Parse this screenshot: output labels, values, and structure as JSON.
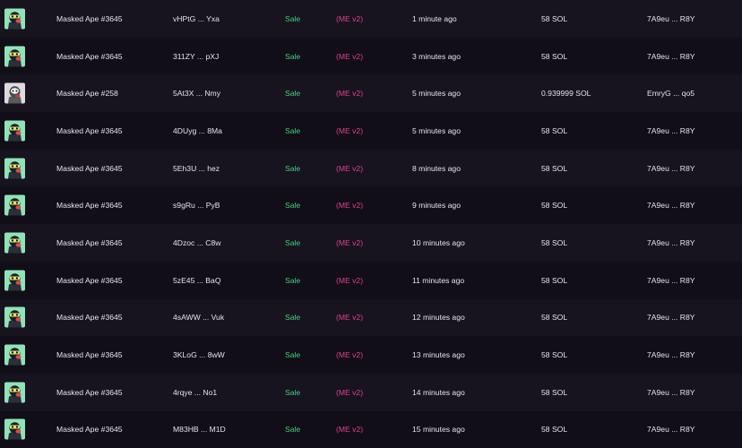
{
  "colors": {
    "sale": "#3fd07a",
    "marketplace": "#e0408e",
    "ape_bg": "#8fe3b8",
    "ape_white_bg": "#dcdcdc"
  },
  "rows": [
    {
      "avatar": "masked-ape-green",
      "name": "Masked Ape #3645",
      "signature": "vHPtG ... Yxa",
      "type": "Sale",
      "marketplace": "(ME v2)",
      "time": "1 minute ago",
      "price": "58 SOL",
      "buyer": "7A9eu ... R8Y"
    },
    {
      "avatar": "masked-ape-green",
      "name": "Masked Ape #3645",
      "signature": "311ZY ... pXJ",
      "type": "Sale",
      "marketplace": "(ME v2)",
      "time": "3 minutes ago",
      "price": "58 SOL",
      "buyer": "7A9eu ... R8Y"
    },
    {
      "avatar": "masked-ape-white",
      "name": "Masked Ape #258",
      "signature": "5At3X ... Nmy",
      "type": "Sale",
      "marketplace": "(ME v2)",
      "time": "5 minutes ago",
      "price": "0.939999 SOL",
      "buyer": "EmryG ... qo5"
    },
    {
      "avatar": "masked-ape-green",
      "name": "Masked Ape #3645",
      "signature": "4DUyg ... 8Ma",
      "type": "Sale",
      "marketplace": "(ME v2)",
      "time": "5 minutes ago",
      "price": "58 SOL",
      "buyer": "7A9eu ... R8Y"
    },
    {
      "avatar": "masked-ape-green",
      "name": "Masked Ape #3645",
      "signature": "5Eh3U ... hez",
      "type": "Sale",
      "marketplace": "(ME v2)",
      "time": "8 minutes ago",
      "price": "58 SOL",
      "buyer": "7A9eu ... R8Y"
    },
    {
      "avatar": "masked-ape-green",
      "name": "Masked Ape #3645",
      "signature": "s9gRu ... PyB",
      "type": "Sale",
      "marketplace": "(ME v2)",
      "time": "9 minutes ago",
      "price": "58 SOL",
      "buyer": "7A9eu ... R8Y"
    },
    {
      "avatar": "masked-ape-green",
      "name": "Masked Ape #3645",
      "signature": "4Dzoc ... C8w",
      "type": "Sale",
      "marketplace": "(ME v2)",
      "time": "10 minutes ago",
      "price": "58 SOL",
      "buyer": "7A9eu ... R8Y"
    },
    {
      "avatar": "masked-ape-green",
      "name": "Masked Ape #3645",
      "signature": "5zE45 ... BaQ",
      "type": "Sale",
      "marketplace": "(ME v2)",
      "time": "11 minutes ago",
      "price": "58 SOL",
      "buyer": "7A9eu ... R8Y"
    },
    {
      "avatar": "masked-ape-green",
      "name": "Masked Ape #3645",
      "signature": "4sAWW ... Vuk",
      "type": "Sale",
      "marketplace": "(ME v2)",
      "time": "12 minutes ago",
      "price": "58 SOL",
      "buyer": "7A9eu ... R8Y"
    },
    {
      "avatar": "masked-ape-green",
      "name": "Masked Ape #3645",
      "signature": "3KLoG ... 8wW",
      "type": "Sale",
      "marketplace": "(ME v2)",
      "time": "13 minutes ago",
      "price": "58 SOL",
      "buyer": "7A9eu ... R8Y"
    },
    {
      "avatar": "masked-ape-green",
      "name": "Masked Ape #3645",
      "signature": "4rqye ... No1",
      "type": "Sale",
      "marketplace": "(ME v2)",
      "time": "14 minutes ago",
      "price": "58 SOL",
      "buyer": "7A9eu ... R8Y"
    },
    {
      "avatar": "masked-ape-green",
      "name": "Masked Ape #3645",
      "signature": "M83HB ... M1D",
      "type": "Sale",
      "marketplace": "(ME v2)",
      "time": "15 minutes ago",
      "price": "58 SOL",
      "buyer": "7A9eu ... R8Y"
    }
  ]
}
